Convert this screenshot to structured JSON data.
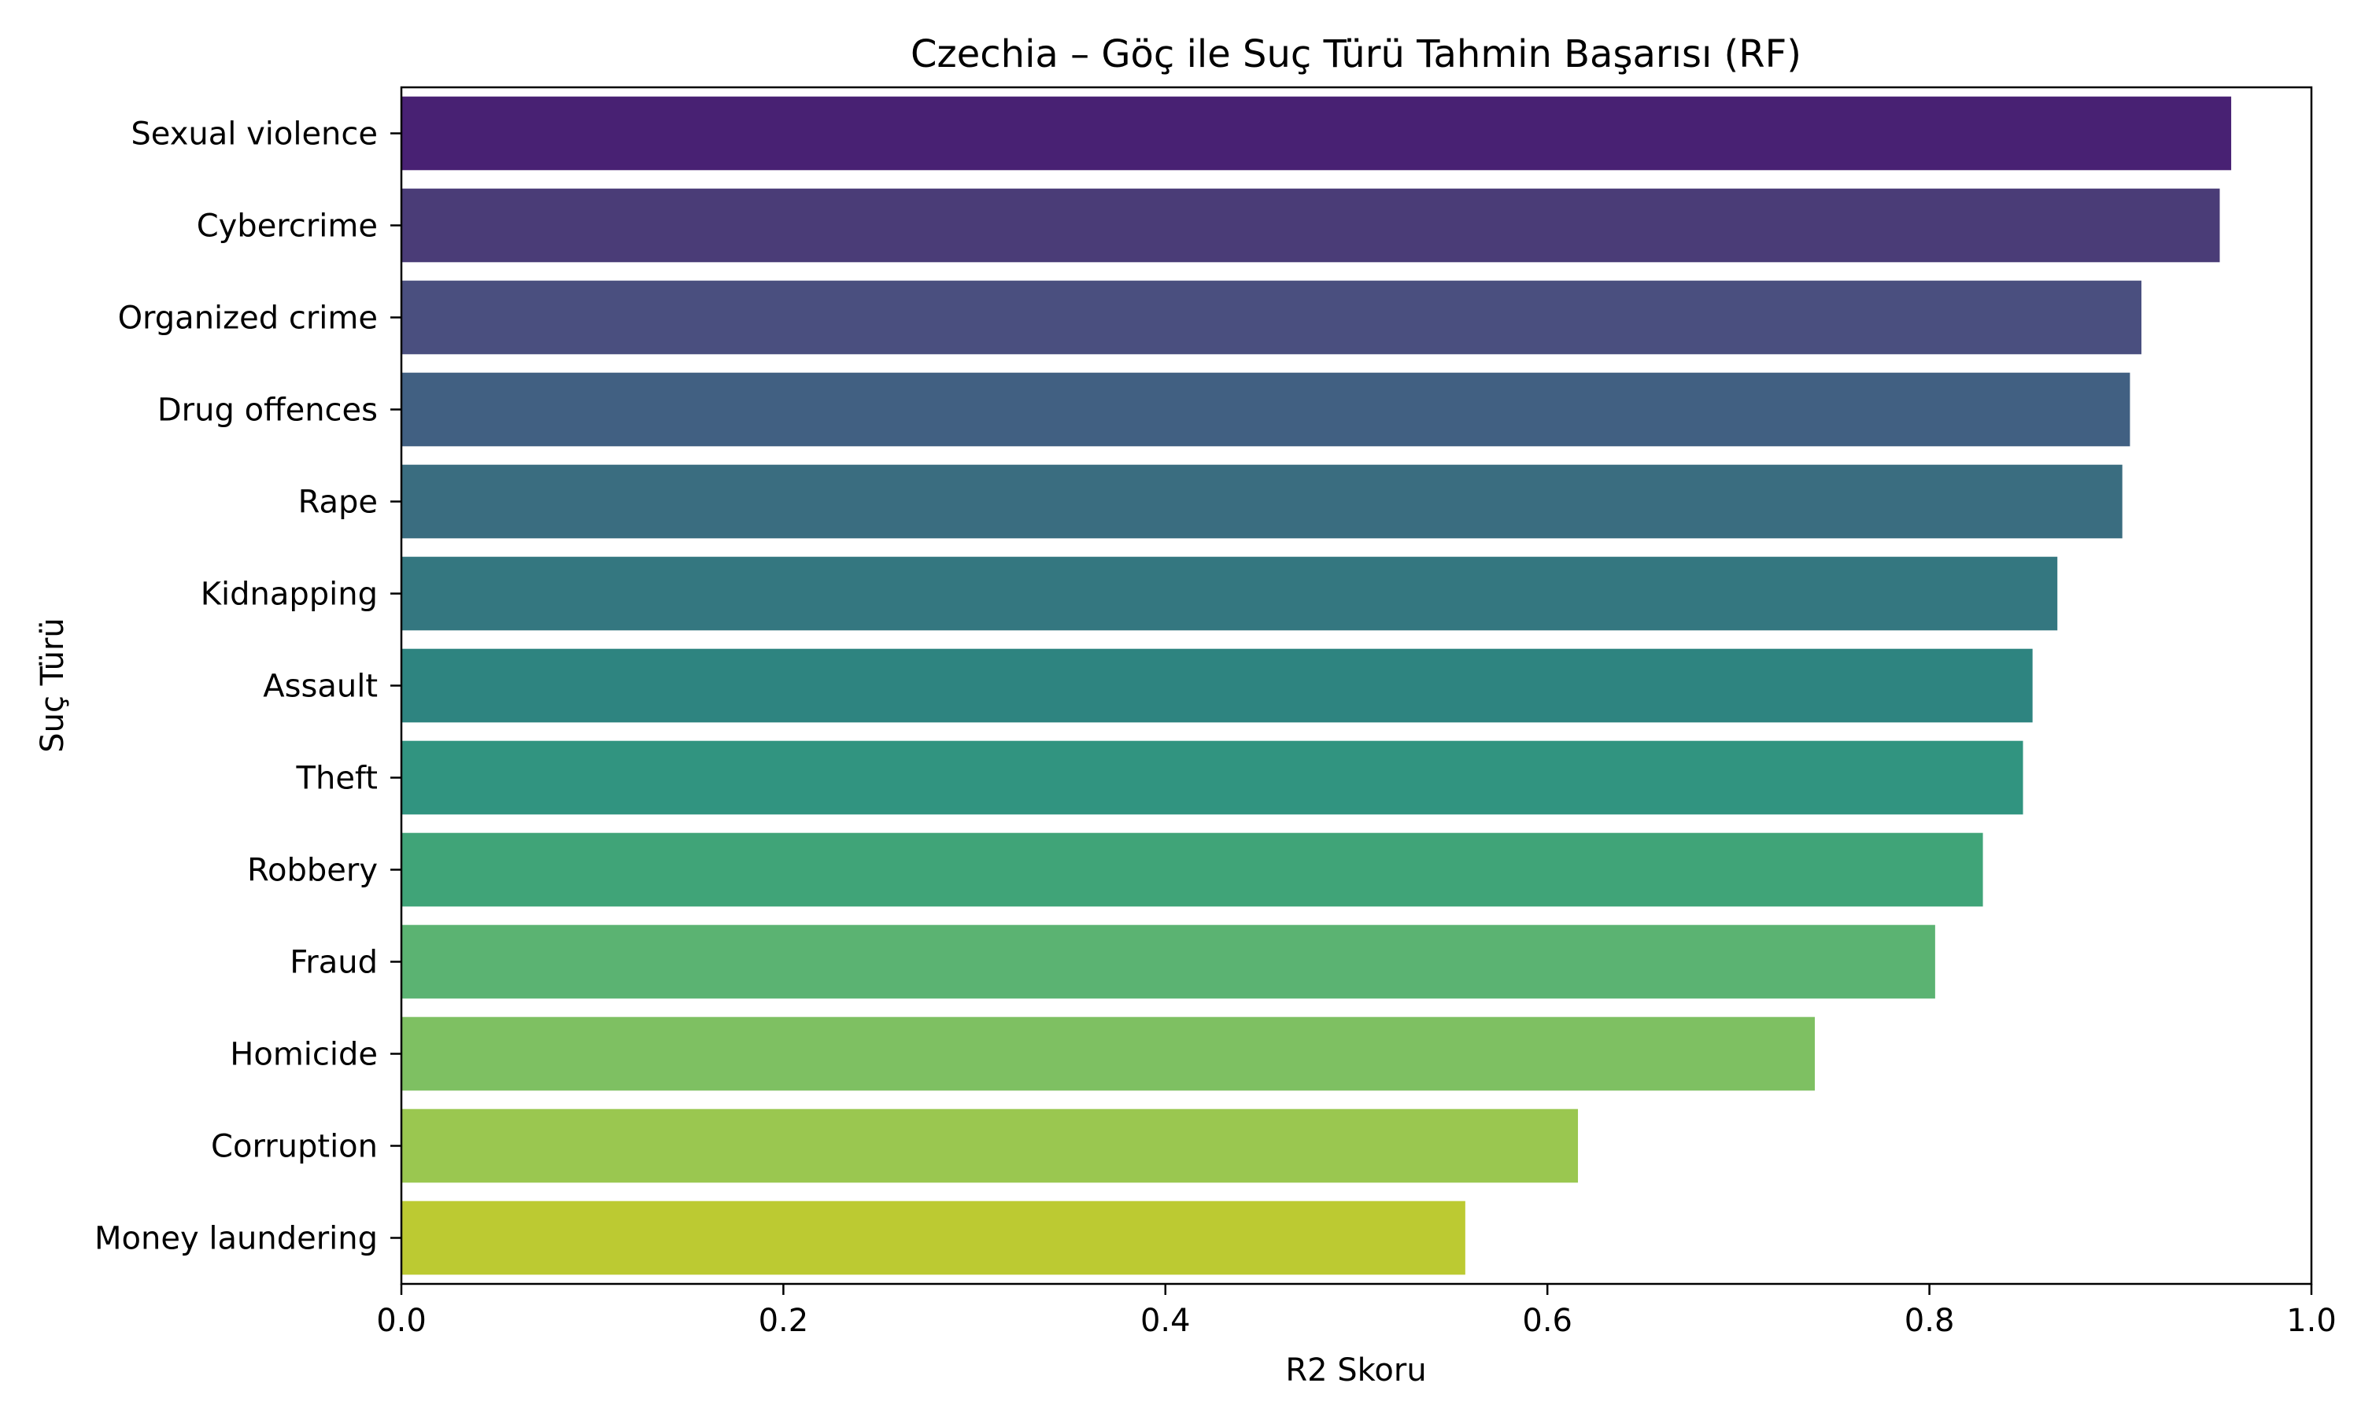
{
  "chart_data": {
    "type": "bar",
    "orientation": "horizontal",
    "title": "Czechia – Göç ile Suç Türü Tahmin Başarısı (RF)",
    "xlabel": "R2 Skoru",
    "ylabel": "Suç Türü",
    "xlim": [
      0,
      1.0
    ],
    "x_ticks": [
      "0.0",
      "0.2",
      "0.4",
      "0.6",
      "0.8",
      "1.0"
    ],
    "x_tick_values": [
      0.0,
      0.2,
      0.4,
      0.6,
      0.8,
      1.0
    ],
    "grid": false,
    "legend": "none",
    "categories": [
      "Sexual violence",
      "Cybercrime",
      "Organized crime",
      "Drug offences",
      "Rape",
      "Kidnapping",
      "Assault",
      "Theft",
      "Robbery",
      "Fraud",
      "Homicide",
      "Corruption",
      "Money laundering"
    ],
    "values": [
      0.958,
      0.952,
      0.911,
      0.905,
      0.901,
      0.867,
      0.854,
      0.849,
      0.828,
      0.803,
      0.74,
      0.616,
      0.557
    ],
    "colors": [
      "#482173",
      "#4a3c77",
      "#4a4f7f",
      "#416082",
      "#3a6d80",
      "#347780",
      "#2e8480",
      "#319480",
      "#40a478",
      "#5bb372",
      "#7ec062",
      "#9ac750",
      "#bcca32"
    ]
  }
}
